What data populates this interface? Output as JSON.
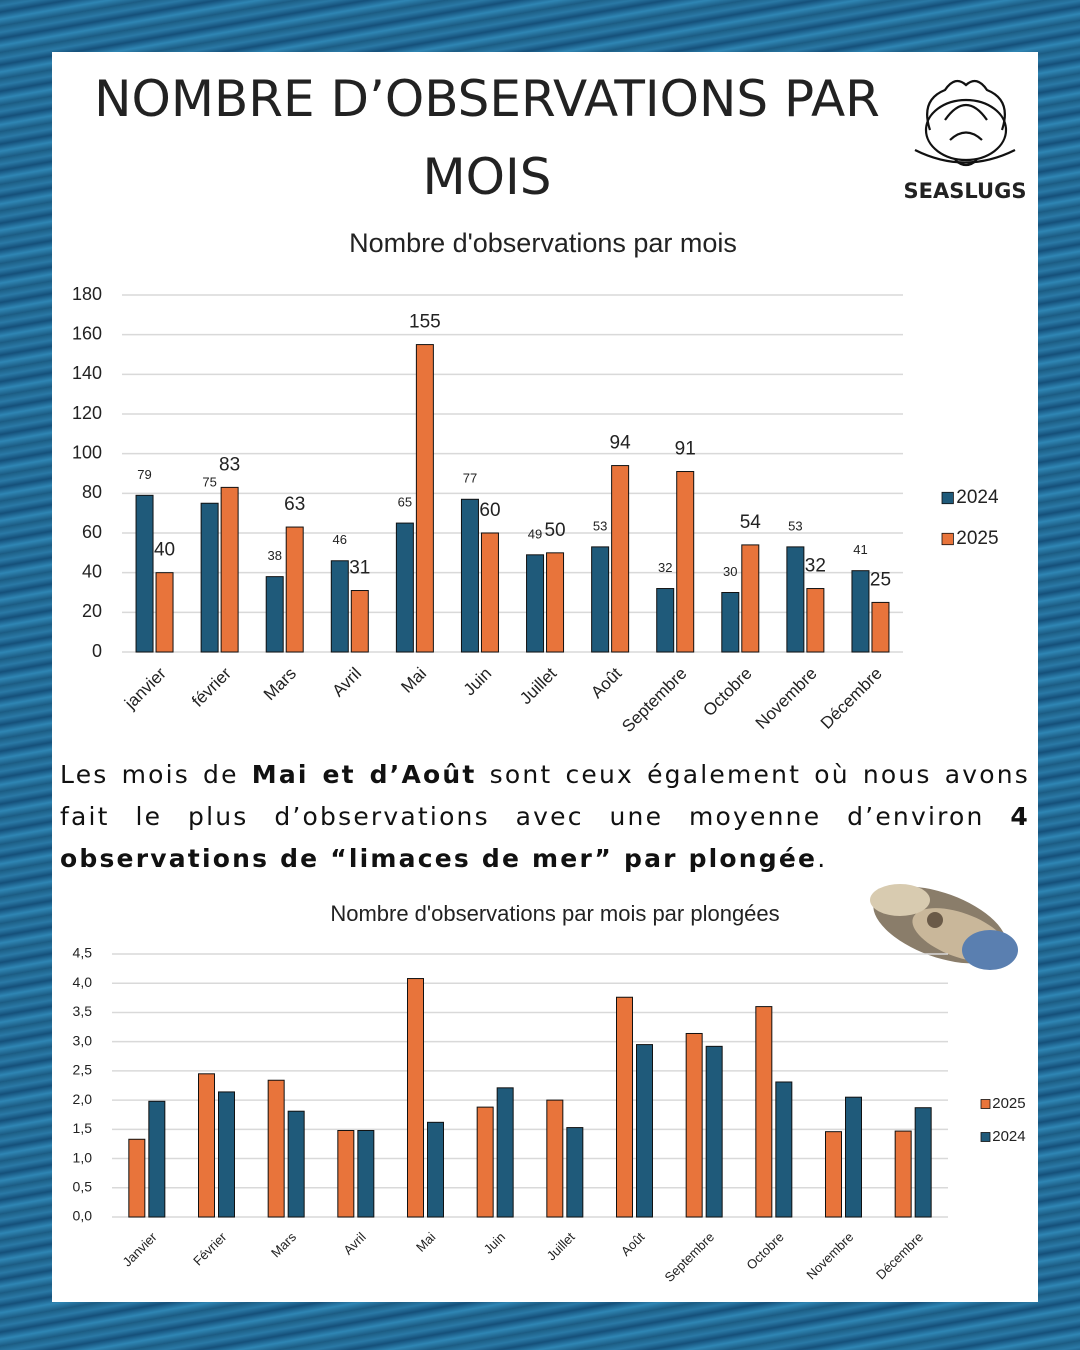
{
  "header": {
    "title": "NOMBRE D’OBSERVATIONS PAR MOIS",
    "logo": "SEASLUGS"
  },
  "text": {
    "parts": [
      {
        "text": "Les mois de ",
        "bold": false
      },
      {
        "text": "Mai et d’Août",
        "bold": true
      },
      {
        "text": "  sont ceux également où nous avons fait le plus d’observations avec une moyenne d’environ ",
        "bold": false
      },
      {
        "text": "4 observations de “limaces de mer” par plongée",
        "bold": true
      },
      {
        "text": ".",
        "bold": false
      }
    ]
  },
  "chart_data": [
    {
      "type": "bar",
      "title": "Nombre d'observations par mois",
      "categories": [
        "janvier",
        "février",
        "Mars",
        "Avril",
        "Mai",
        "Juin",
        "Juillet",
        "Août",
        "Septembre",
        "Octobre",
        "Novembre",
        "Décembre"
      ],
      "series": [
        {
          "name": "2024",
          "color": "#1f5a7a",
          "values": [
            79,
            75,
            38,
            46,
            65,
            77,
            49,
            53,
            32,
            30,
            53,
            41
          ]
        },
        {
          "name": "2025",
          "color": "#e8743b",
          "values": [
            40,
            83,
            63,
            31,
            155,
            60,
            50,
            94,
            91,
            54,
            32,
            25
          ]
        }
      ],
      "ylim": [
        0,
        180
      ],
      "yticks": [
        0,
        20,
        40,
        60,
        80,
        100,
        120,
        140,
        160,
        180
      ],
      "grid": true,
      "data_labels": true,
      "legend": "right"
    },
    {
      "type": "bar",
      "title": "Nombre d'observations par mois par plongées",
      "categories": [
        "Janvier",
        "Février",
        "Mars",
        "Avril",
        "Mai",
        "Juin",
        "Juillet",
        "Août",
        "Septembre",
        "Octobre",
        "Novembre",
        "Décembre"
      ],
      "series": [
        {
          "name": "2025",
          "color": "#e8743b",
          "values": [
            1.33,
            2.45,
            2.34,
            1.48,
            4.08,
            1.88,
            2.0,
            3.76,
            3.14,
            3.6,
            1.46,
            1.47
          ]
        },
        {
          "name": "2024",
          "color": "#1f5a7a",
          "values": [
            1.98,
            2.14,
            1.81,
            1.48,
            1.62,
            2.21,
            1.53,
            2.95,
            2.92,
            2.31,
            2.05,
            1.87
          ]
        }
      ],
      "ylim": [
        0,
        4.5
      ],
      "yticks": [
        {
          "value": 0,
          "label": "0,0"
        },
        {
          "value": 0.5,
          "label": "0,5"
        },
        {
          "value": 1,
          "label": "1,0"
        },
        {
          "value": 1.5,
          "label": "1,5"
        },
        {
          "value": 2,
          "label": "2,0"
        },
        {
          "value": 2.5,
          "label": "2,5"
        },
        {
          "value": 3,
          "label": "3,0"
        },
        {
          "value": 3.5,
          "label": "3,5"
        },
        {
          "value": 4,
          "label": "4,0"
        },
        {
          "value": 4.5,
          "label": "4,5"
        }
      ],
      "grid": true,
      "data_labels": false,
      "legend": "right"
    }
  ]
}
